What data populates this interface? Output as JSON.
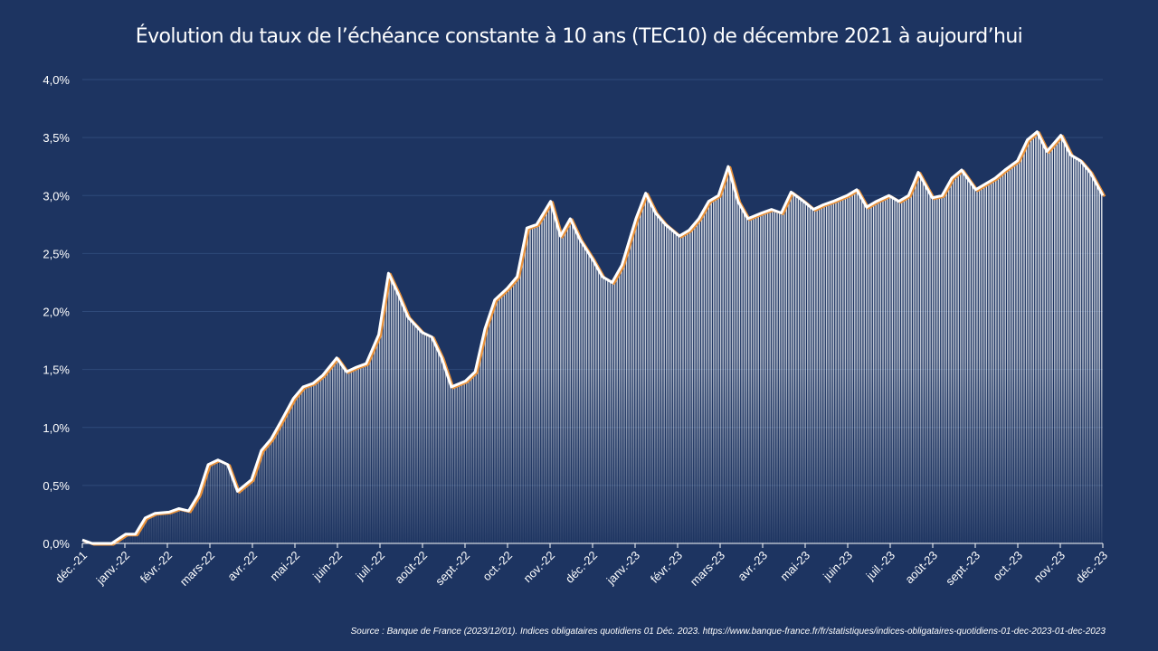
{
  "colors": {
    "background": "#1d3461",
    "line": "#ffffff",
    "line_shadow": "#e8913a",
    "grid": "#2f4a7a",
    "text": "#ffffff"
  },
  "chart_data": {
    "type": "area",
    "title": "Évolution du taux de l’échéance constante à 10 ans (TEC10) de décembre 2021 à aujourd’hui",
    "xlabel": "",
    "ylabel": "",
    "ylim": [
      0,
      4
    ],
    "yticks": [
      "0,0%",
      "0,5%",
      "1,0%",
      "1,5%",
      "2,0%",
      "2,5%",
      "3,0%",
      "3,5%",
      "4,0%"
    ],
    "xticks": [
      "déc.-21",
      "janv.-22",
      "févr.-22",
      "mars-22",
      "avr.-22",
      "mai-22",
      "juin-22",
      "juil.-22",
      "août-22",
      "sept.-22",
      "oct.-22",
      "nov.-22",
      "déc.-22",
      "janv.-23",
      "févr.-23",
      "mars-23",
      "avr.-23",
      "mai-23",
      "juin-23",
      "juil.-23",
      "août-23",
      "sept.-23",
      "oct.-23",
      "nov.-23",
      "déc.-23"
    ],
    "grid": true,
    "legend": "none",
    "series": [
      {
        "x": [
          "2021-12-01",
          "2021-12-08",
          "2021-12-15",
          "2021-12-22",
          "2022-01-01",
          "2022-01-08",
          "2022-01-15",
          "2022-01-22",
          "2022-02-01",
          "2022-02-08",
          "2022-02-15",
          "2022-02-22",
          "2022-03-01",
          "2022-03-08",
          "2022-03-15",
          "2022-03-22",
          "2022-04-01",
          "2022-04-08",
          "2022-04-15",
          "2022-04-22",
          "2022-05-01",
          "2022-05-08",
          "2022-05-15",
          "2022-05-22",
          "2022-06-01",
          "2022-06-08",
          "2022-06-15",
          "2022-06-22",
          "2022-07-01",
          "2022-07-08",
          "2022-07-15",
          "2022-07-22",
          "2022-08-01",
          "2022-08-08",
          "2022-08-15",
          "2022-08-22",
          "2022-09-01",
          "2022-09-08",
          "2022-09-15",
          "2022-09-22",
          "2022-10-01",
          "2022-10-08",
          "2022-10-15",
          "2022-10-22",
          "2022-11-01",
          "2022-11-08",
          "2022-11-15",
          "2022-11-22",
          "2022-12-01",
          "2022-12-08",
          "2022-12-15",
          "2022-12-22",
          "2023-01-01",
          "2023-01-08",
          "2023-01-15",
          "2023-01-22",
          "2023-02-01",
          "2023-02-08",
          "2023-02-15",
          "2023-02-22",
          "2023-03-01",
          "2023-03-08",
          "2023-03-15",
          "2023-03-22",
          "2023-04-01",
          "2023-04-08",
          "2023-04-15",
          "2023-04-22",
          "2023-05-01",
          "2023-05-08",
          "2023-05-15",
          "2023-05-22",
          "2023-06-01",
          "2023-06-08",
          "2023-06-15",
          "2023-06-22",
          "2023-07-01",
          "2023-07-08",
          "2023-07-15",
          "2023-07-22",
          "2023-08-01",
          "2023-08-08",
          "2023-08-15",
          "2023-08-22",
          "2023-09-01",
          "2023-09-08",
          "2023-09-15",
          "2023-09-22",
          "2023-10-01",
          "2023-10-08",
          "2023-10-15",
          "2023-10-22",
          "2023-11-01",
          "2023-11-08",
          "2023-11-15",
          "2023-11-22",
          "2023-12-01"
        ],
        "values": [
          0.03,
          0.0,
          0.0,
          0.0,
          0.08,
          0.08,
          0.22,
          0.26,
          0.27,
          0.3,
          0.28,
          0.42,
          0.68,
          0.72,
          0.68,
          0.45,
          0.55,
          0.8,
          0.9,
          1.05,
          1.25,
          1.35,
          1.38,
          1.45,
          1.6,
          1.48,
          1.52,
          1.55,
          1.8,
          2.33,
          2.15,
          1.95,
          1.82,
          1.78,
          1.6,
          1.35,
          1.4,
          1.48,
          1.85,
          2.1,
          2.2,
          2.3,
          2.72,
          2.75,
          2.95,
          2.65,
          2.8,
          2.62,
          2.45,
          2.3,
          2.25,
          2.4,
          2.8,
          3.02,
          2.85,
          2.75,
          2.65,
          2.7,
          2.8,
          2.95,
          3.0,
          3.25,
          2.95,
          2.8,
          2.85,
          2.88,
          2.85,
          3.03,
          2.95,
          2.88,
          2.92,
          2.95,
          3.0,
          3.05,
          2.9,
          2.95,
          3.0,
          2.95,
          3.0,
          3.2,
          2.98,
          3.0,
          3.15,
          3.22,
          3.05,
          3.1,
          3.15,
          3.22,
          3.3,
          3.48,
          3.55,
          3.38,
          3.52,
          3.35,
          3.3,
          3.2,
          3.0
        ]
      }
    ]
  },
  "source": "Source :  Banque de France (2023/12/01). Indices obligataires quotidiens 01 Déc. 2023. https://www.banque-france.fr/fr/statistiques/indices-obligataires-quotidiens-01-dec-2023-01-dec-2023"
}
